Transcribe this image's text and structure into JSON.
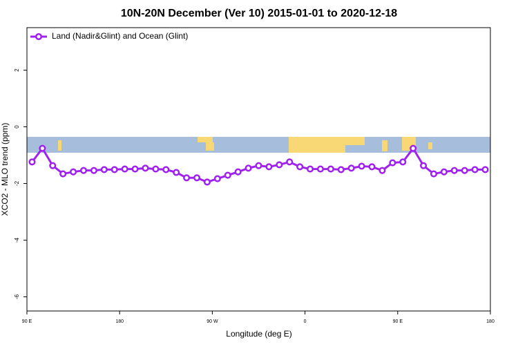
{
  "chart_data": {
    "type": "line",
    "title": "10N-20N December (Ver 10)   2015-01-01 to 2020-12-18",
    "xlabel": "Longitude (deg E)",
    "ylabel": "XCO2 - MLO trend (ppm)",
    "x": [
      95,
      105,
      115,
      125,
      135,
      145,
      155,
      165,
      175,
      185,
      195,
      205,
      215,
      225,
      235,
      245,
      255,
      265,
      275,
      285,
      295,
      305,
      315,
      325,
      335,
      345,
      355,
      365,
      375,
      385,
      395,
      405,
      415,
      425,
      435,
      445,
      455,
      465,
      475,
      485,
      495,
      505,
      515,
      525,
      535
    ],
    "series": [
      {
        "name": "Land (Nadir&Glint) and Ocean (Glint)",
        "color": "#a020f0",
        "values": [
          -1.24,
          -0.76,
          -1.37,
          -1.66,
          -1.59,
          -1.54,
          -1.54,
          -1.51,
          -1.51,
          -1.49,
          -1.49,
          -1.46,
          -1.49,
          -1.51,
          -1.61,
          -1.8,
          -1.8,
          -1.95,
          -1.83,
          -1.71,
          -1.59,
          -1.46,
          -1.37,
          -1.41,
          -1.34,
          -1.24,
          -1.41,
          -1.49,
          -1.49,
          -1.49,
          -1.51,
          -1.46,
          -1.39,
          -1.41,
          -1.54,
          -1.27,
          -1.24,
          -0.76,
          -1.37,
          -1.66,
          -1.59,
          -1.54,
          -1.54,
          -1.51,
          -1.51
        ]
      }
    ],
    "xlim": [
      90,
      540
    ],
    "xticks": [
      {
        "value": 90,
        "label": "90 E"
      },
      180,
      {
        "value": 270,
        "label": "90 W"
      },
      {
        "value": 360,
        "label": "0"
      },
      {
        "value": 450,
        "label": "90 E"
      },
      {
        "value": 540,
        "label": "180"
      }
    ],
    "ylim": [
      -6.5,
      3.5
    ],
    "yticks": [
      -6,
      -4,
      -2,
      0,
      2
    ],
    "legend": "top-left"
  }
}
